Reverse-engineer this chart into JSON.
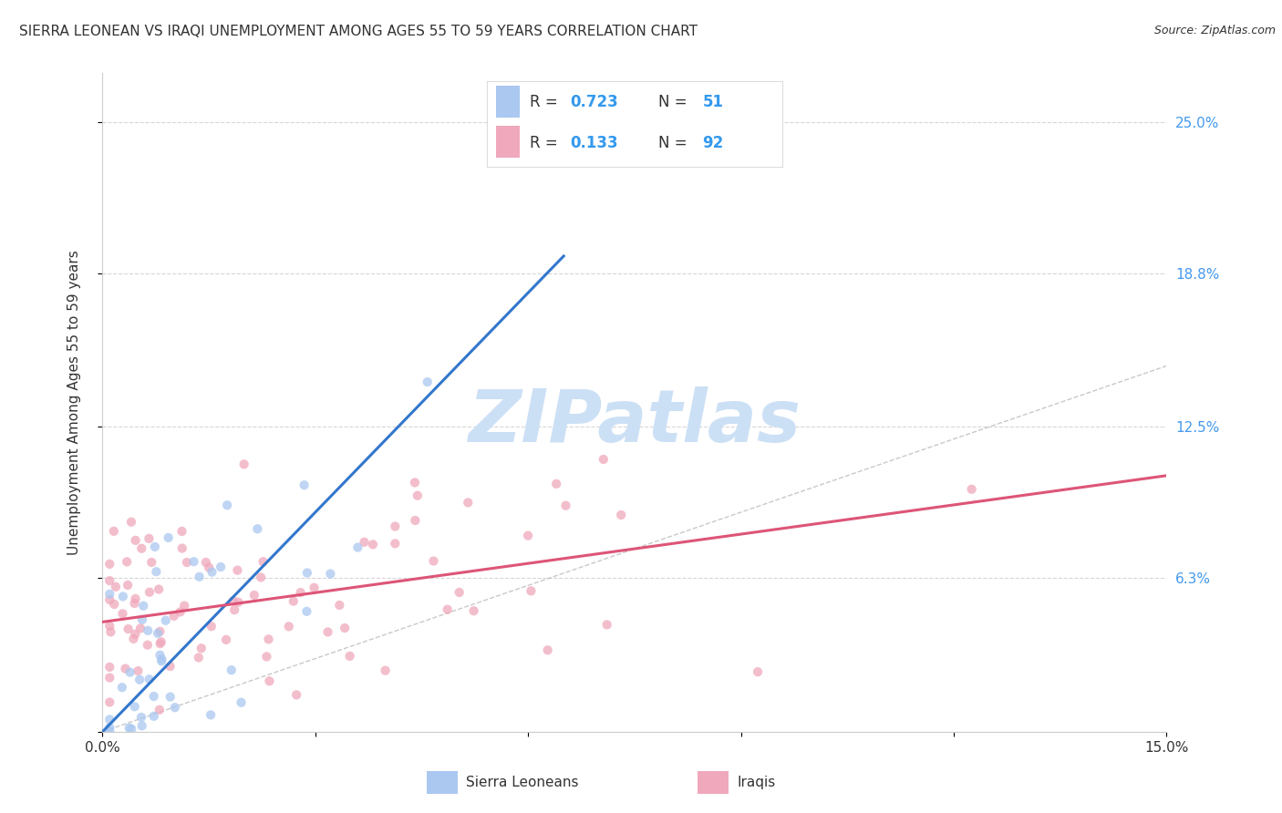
{
  "title": "SIERRA LEONEAN VS IRAQI UNEMPLOYMENT AMONG AGES 55 TO 59 YEARS CORRELATION CHART",
  "source": "Source: ZipAtlas.com",
  "ylabel": "Unemployment Among Ages 55 to 59 years",
  "xlim": [
    0,
    0.15
  ],
  "ylim": [
    0.0,
    0.27
  ],
  "ytick_positions": [
    0.0,
    0.063,
    0.125,
    0.188,
    0.25
  ],
  "ytick_labels": [
    "",
    "6.3%",
    "12.5%",
    "18.8%",
    "25.0%"
  ],
  "sl_R": 0.723,
  "sl_N": 51,
  "iraq_R": 0.133,
  "iraq_N": 92,
  "sl_color": "#aac8f0",
  "iraq_color": "#f0a8bc",
  "sl_line_color": "#3377cc",
  "iraq_line_color": "#dd5577",
  "diagonal_color": "#bbbbbb",
  "background_color": "#ffffff",
  "grid_color": "#cccccc",
  "watermark": "ZIPatlas",
  "watermark_color": "#cce0f5",
  "tick_color": "#4499ee",
  "label_color": "#333333",
  "legend_text_color": "#333333",
  "legend_value_color": "#3399ee"
}
